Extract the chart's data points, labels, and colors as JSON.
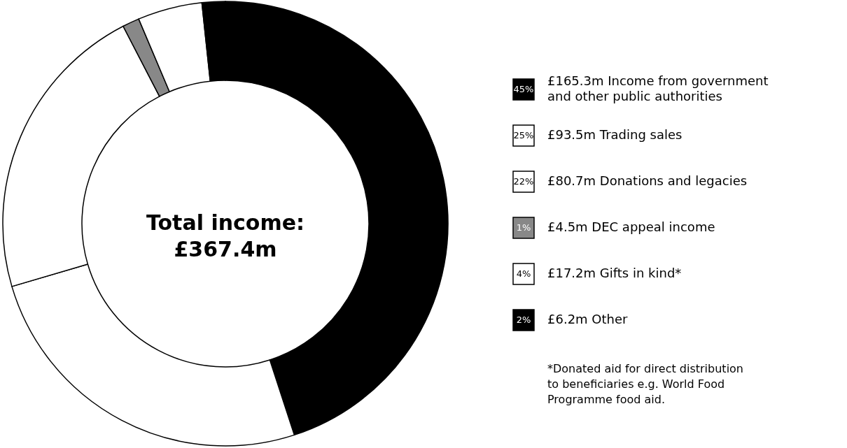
{
  "chart_data": {
    "type": "donut",
    "title": "Total income:\n£367.4m",
    "categories": [
      "£165.3m Income from government\nand other public authorities",
      "£93.5m Trading sales",
      "£80.7m Donations and legacies",
      "£4.5m DEC appeal income",
      "£17.2m Gifts in kind*",
      "£6.2m Other"
    ],
    "values": [
      165.3,
      93.5,
      80.7,
      4.5,
      17.2,
      6.2
    ],
    "colors": [
      "#000000",
      "#ffffff",
      "#ffffff",
      "#888888",
      "#ffffff",
      "#000000"
    ],
    "annotations": [
      "45%",
      "25%",
      "22%",
      "1%",
      "4%",
      "2%",
      "*Donated aid for direct distribution\nto beneficiaries e.g. World Food\nProgramme food aid."
    ],
    "legend": "right"
  }
}
